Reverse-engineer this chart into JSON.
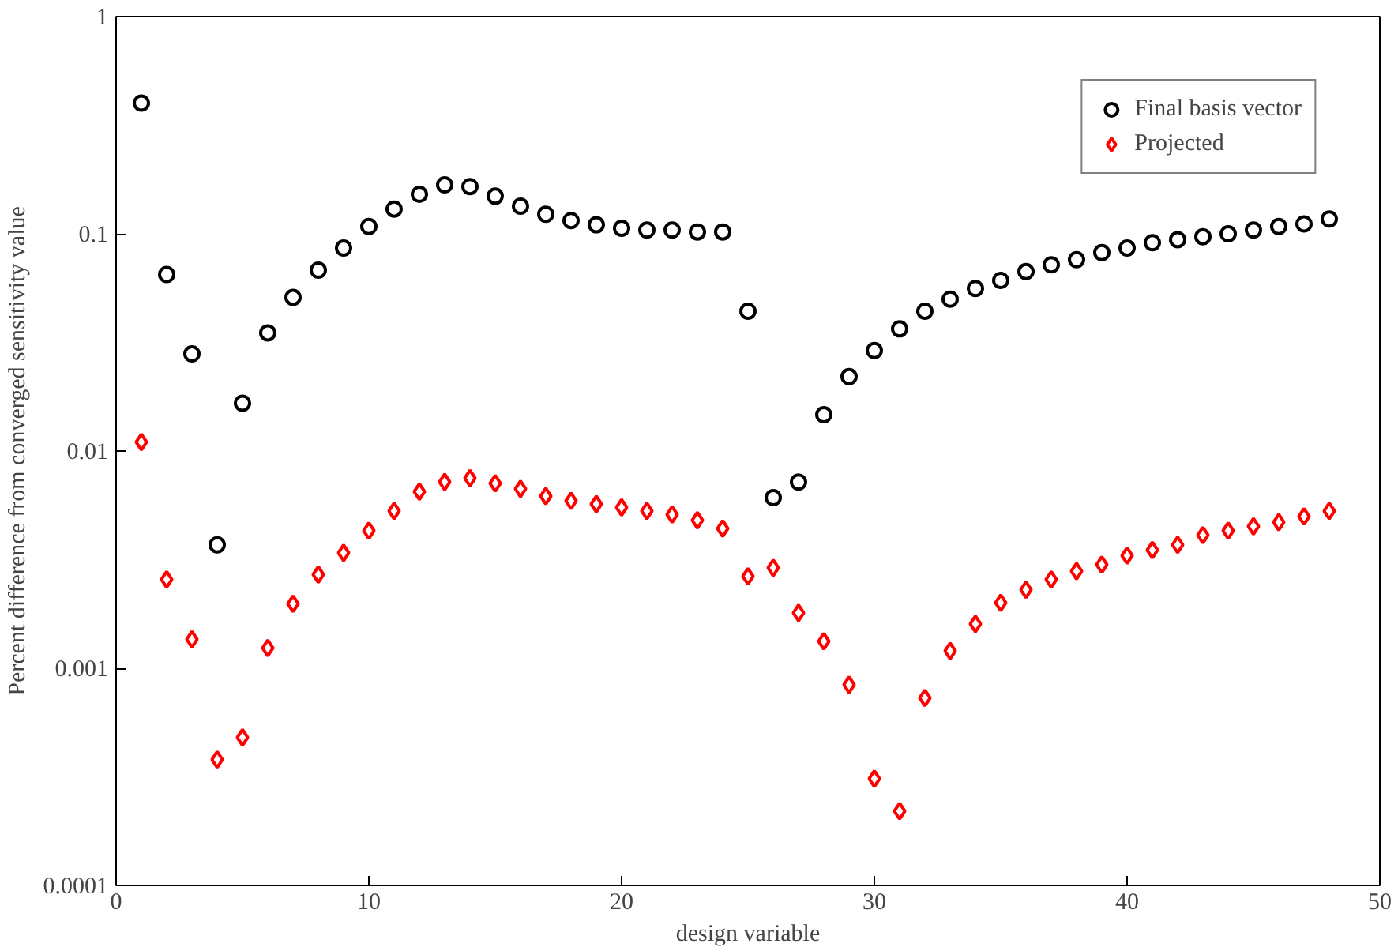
{
  "chart_data": {
    "type": "scatter",
    "xlabel": "design variable",
    "ylabel": "Percent difference from converged sensitivity value",
    "x": [
      1,
      2,
      3,
      4,
      5,
      6,
      7,
      8,
      9,
      10,
      11,
      12,
      13,
      14,
      15,
      16,
      17,
      18,
      19,
      20,
      21,
      22,
      23,
      24,
      25,
      26,
      27,
      28,
      29,
      30,
      31,
      32,
      33,
      34,
      35,
      36,
      37,
      38,
      39,
      40,
      41,
      42,
      43,
      44,
      45,
      46,
      47,
      48
    ],
    "series": [
      {
        "name": "Final basis vector",
        "color": "#000000",
        "marker": "circle",
        "values": [
          0.4,
          0.065,
          0.028,
          0.0037,
          0.0166,
          0.035,
          0.051,
          0.068,
          0.086,
          0.108,
          0.13,
          0.152,
          0.168,
          0.165,
          0.149,
          0.134,
          0.123,
          0.115,
          0.11,
          0.106,
          0.104,
          0.104,
          0.102,
          0.102,
          0.044,
          0.0061,
          0.0072,
          0.0147,
          0.022,
          0.029,
          0.0365,
          0.044,
          0.05,
          0.056,
          0.061,
          0.067,
          0.072,
          0.076,
          0.082,
          0.086,
          0.091,
          0.094,
          0.097,
          0.1,
          0.104,
          0.108,
          0.111,
          0.117
        ]
      },
      {
        "name": "Projected",
        "color": "#ff0000",
        "marker": "diamond",
        "values": [
          0.011,
          0.00256,
          0.00136,
          0.00038,
          0.00048,
          0.00124,
          0.00198,
          0.0027,
          0.0034,
          0.0043,
          0.0053,
          0.0065,
          0.0072,
          0.0075,
          0.0071,
          0.0067,
          0.0062,
          0.0059,
          0.0057,
          0.0055,
          0.0053,
          0.0051,
          0.0048,
          0.0044,
          0.00265,
          0.0029,
          0.0018,
          0.00133,
          0.00084,
          0.00031,
          0.00022,
          0.00073,
          0.0012,
          0.0016,
          0.002,
          0.0023,
          0.00256,
          0.0028,
          0.003,
          0.0033,
          0.0035,
          0.0037,
          0.0041,
          0.0043,
          0.0045,
          0.0047,
          0.005,
          0.0053
        ]
      }
    ],
    "log": "y",
    "xlim": [
      0,
      50
    ],
    "xticks": [
      0,
      10,
      20,
      30,
      40,
      50
    ],
    "ylim": [
      0.0001,
      1
    ],
    "yticks": [
      {
        "value": 0.0001,
        "label": "0.0001"
      },
      {
        "value": 0.001,
        "label": "0.001"
      },
      {
        "value": 0.01,
        "label": "0.01"
      },
      {
        "value": 0.1,
        "label": "0.1"
      },
      {
        "value": 1,
        "label": "1"
      }
    ],
    "grid": false,
    "legend": "top right"
  }
}
